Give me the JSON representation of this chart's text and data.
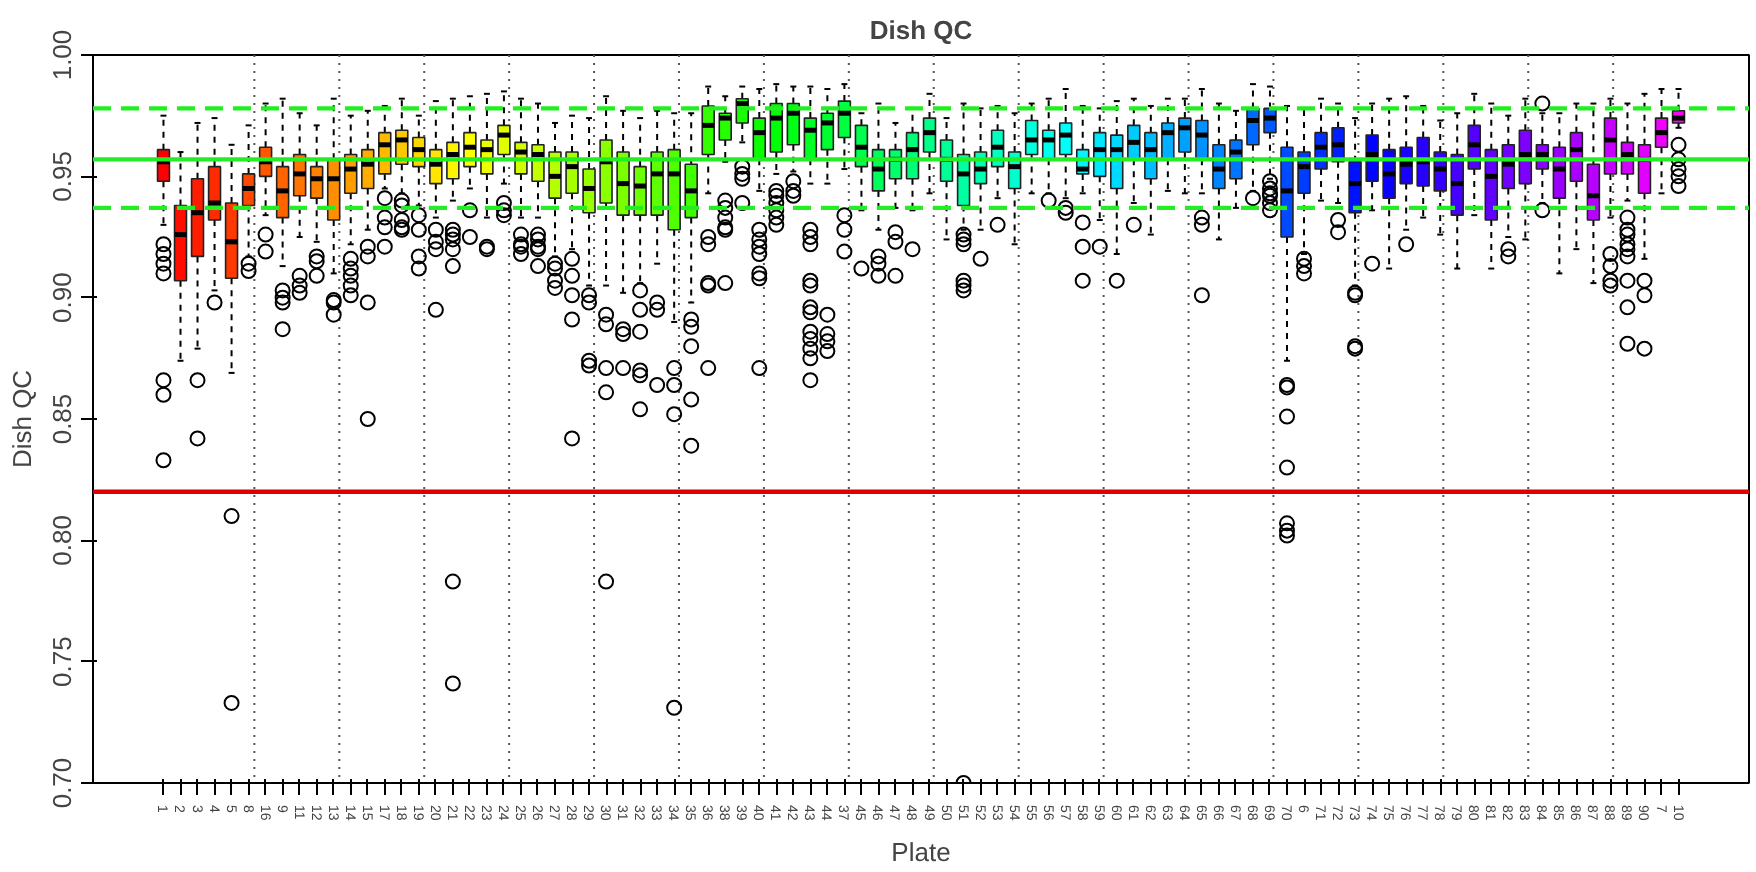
{
  "chart_data": {
    "type": "box",
    "title": "Dish QC",
    "xlabel": "Plate",
    "ylabel": "Dish QC",
    "categories": [
      "1",
      "2",
      "3",
      "4",
      "5",
      "8",
      "16",
      "9",
      "11",
      "12",
      "13",
      "14",
      "15",
      "17",
      "18",
      "19",
      "20",
      "21",
      "22",
      "23",
      "24",
      "25",
      "26",
      "27",
      "28",
      "29",
      "30",
      "31",
      "32",
      "33",
      "34",
      "35",
      "36",
      "38",
      "39",
      "40",
      "41",
      "42",
      "43",
      "44",
      "37",
      "45",
      "46",
      "47",
      "48",
      "49",
      "50",
      "51",
      "52",
      "53",
      "54",
      "55",
      "56",
      "57",
      "58",
      "59",
      "60",
      "61",
      "62",
      "63",
      "64",
      "65",
      "66",
      "67",
      "68",
      "69",
      "70",
      "6",
      "71",
      "72",
      "73",
      "74",
      "75",
      "76",
      "77",
      "78",
      "79",
      "80",
      "81",
      "82",
      "83",
      "84",
      "85",
      "86",
      "87",
      "88",
      "89",
      "90",
      "7",
      "10"
    ],
    "colors": [
      "#ff0000",
      "#ff0e00",
      "#ff1d00",
      "#ff2b00",
      "#ff3900",
      "#ff4800",
      "#ff5600",
      "#ff6400",
      "#ff7300",
      "#ff8100",
      "#ff8f00",
      "#ff9e00",
      "#ffac00",
      "#ffba00",
      "#ffc900",
      "#ffd700",
      "#ffe500",
      "#fff400",
      "#fcff00",
      "#eeff00",
      "#e0ff00",
      "#d1ff00",
      "#c3ff00",
      "#b4ff00",
      "#a6ff00",
      "#98ff00",
      "#89ff00",
      "#7bff00",
      "#6dff00",
      "#5eff00",
      "#50ff00",
      "#42ff00",
      "#34ff00",
      "#25ff00",
      "#17ff00",
      "#09ff00",
      "#00ff06",
      "#00ff14",
      "#00ff22",
      "#00ff31",
      "#00ff3f",
      "#00ff4d",
      "#00ff5c",
      "#00ff6a",
      "#00ff78",
      "#00ff87",
      "#00ff95",
      "#00ffa3",
      "#00ffb2",
      "#00ffc0",
      "#00ffce",
      "#00ffdd",
      "#00ffeb",
      "#00fff9",
      "#00f6ff",
      "#00e8ff",
      "#00daff",
      "#00cbff",
      "#00bdff",
      "#00afff",
      "#00a0ff",
      "#0092ff",
      "#0084ff",
      "#0075ff",
      "#0067ff",
      "#0059ff",
      "#004aff",
      "#003cff",
      "#002eff",
      "#001fff",
      "#0011ff",
      "#0003ff",
      "#0b00ff",
      "#1a00ff",
      "#2800ff",
      "#3600ff",
      "#4500ff",
      "#5300ff",
      "#6100ff",
      "#7000ff",
      "#7e00ff",
      "#8c00ff",
      "#9b00ff",
      "#a900ff",
      "#b700ff",
      "#c600ff",
      "#d400ff",
      "#e200ff",
      "#f100ff",
      "#ff00ff"
    ],
    "boxes": [
      {
        "low": 0.93,
        "q1": 0.948,
        "median": 0.956,
        "q3": 0.961,
        "high": 0.975,
        "outliers": [
          0.922,
          0.918,
          0.914,
          0.91,
          0.866,
          0.86,
          0.833
        ]
      },
      {
        "low": 0.874,
        "q1": 0.907,
        "median": 0.926,
        "q3": 0.938,
        "high": 0.96
      },
      {
        "low": 0.879,
        "q1": 0.917,
        "median": 0.935,
        "q3": 0.949,
        "high": 0.972,
        "outliers": [
          0.866,
          0.842
        ]
      },
      {
        "low": 0.903,
        "q1": 0.932,
        "median": 0.939,
        "q3": 0.954,
        "high": 0.974,
        "outliers": [
          0.898
        ]
      },
      {
        "low": 0.869,
        "q1": 0.908,
        "median": 0.923,
        "q3": 0.939,
        "high": 0.963,
        "outliers": [
          0.81,
          0.733
        ]
      },
      {
        "low": 0.917,
        "q1": 0.938,
        "median": 0.945,
        "q3": 0.951,
        "high": 0.971,
        "outliers": [
          0.914,
          0.911
        ]
      },
      {
        "low": 0.934,
        "q1": 0.95,
        "median": 0.956,
        "q3": 0.962,
        "high": 0.98,
        "outliers": [
          0.926,
          0.919
        ]
      },
      {
        "low": 0.913,
        "q1": 0.933,
        "median": 0.944,
        "q3": 0.954,
        "high": 0.982,
        "outliers": [
          0.903,
          0.9,
          0.898,
          0.887
        ]
      },
      {
        "low": 0.925,
        "q1": 0.942,
        "median": 0.951,
        "q3": 0.959,
        "high": 0.976,
        "outliers": [
          0.909,
          0.905,
          0.902
        ]
      },
      {
        "low": 0.923,
        "q1": 0.941,
        "median": 0.949,
        "q3": 0.954,
        "high": 0.971,
        "outliers": [
          0.917,
          0.915,
          0.909
        ]
      },
      {
        "low": 0.91,
        "q1": 0.932,
        "median": 0.949,
        "q3": 0.957,
        "high": 0.982,
        "outliers": [
          0.899,
          0.898,
          0.893
        ]
      },
      {
        "low": 0.922,
        "q1": 0.943,
        "median": 0.953,
        "q3": 0.959,
        "high": 0.975,
        "outliers": [
          0.916,
          0.912,
          0.909,
          0.905,
          0.901
        ]
      },
      {
        "low": 0.928,
        "q1": 0.945,
        "median": 0.955,
        "q3": 0.961,
        "high": 0.977,
        "outliers": [
          0.921,
          0.917,
          0.898,
          0.85
        ]
      },
      {
        "low": 0.945,
        "q1": 0.951,
        "median": 0.963,
        "q3": 0.968,
        "high": 0.979,
        "outliers": [
          0.941,
          0.933,
          0.929,
          0.921
        ]
      },
      {
        "low": 0.943,
        "q1": 0.955,
        "median": 0.965,
        "q3": 0.969,
        "high": 0.982,
        "outliers": [
          0.94,
          0.938,
          0.932,
          0.929,
          0.928
        ]
      },
      {
        "low": 0.938,
        "q1": 0.954,
        "median": 0.961,
        "q3": 0.966,
        "high": 0.975,
        "outliers": [
          0.934,
          0.928,
          0.917,
          0.912
        ]
      },
      {
        "low": 0.933,
        "q1": 0.947,
        "median": 0.955,
        "q3": 0.961,
        "high": 0.981,
        "outliers": [
          0.928,
          0.923,
          0.92,
          0.895
        ]
      },
      {
        "low": 0.94,
        "q1": 0.949,
        "median": 0.959,
        "q3": 0.964,
        "high": 0.982,
        "outliers": [
          0.928,
          0.926,
          0.924,
          0.92,
          0.913,
          0.783,
          0.741
        ]
      },
      {
        "low": 0.945,
        "q1": 0.954,
        "median": 0.962,
        "q3": 0.968,
        "high": 0.983,
        "outliers": [
          0.936,
          0.925
        ]
      },
      {
        "low": 0.933,
        "q1": 0.951,
        "median": 0.961,
        "q3": 0.965,
        "high": 0.984,
        "outliers": [
          0.921,
          0.92
        ]
      },
      {
        "low": 0.947,
        "q1": 0.959,
        "median": 0.967,
        "q3": 0.971,
        "high": 0.985,
        "outliers": [
          0.939,
          0.936,
          0.934
        ]
      },
      {
        "low": 0.933,
        "q1": 0.951,
        "median": 0.96,
        "q3": 0.964,
        "high": 0.982,
        "outliers": [
          0.926,
          0.922,
          0.921,
          0.918
        ]
      },
      {
        "low": 0.933,
        "q1": 0.948,
        "median": 0.959,
        "q3": 0.963,
        "high": 0.98,
        "outliers": [
          0.926,
          0.924,
          0.921,
          0.92,
          0.913
        ]
      },
      {
        "low": 0.917,
        "q1": 0.941,
        "median": 0.95,
        "q3": 0.96,
        "high": 0.972,
        "outliers": [
          0.914,
          0.912,
          0.907,
          0.904
        ]
      },
      {
        "low": 0.92,
        "q1": 0.943,
        "median": 0.954,
        "q3": 0.96,
        "high": 0.975,
        "outliers": [
          0.916,
          0.909,
          0.901,
          0.891,
          0.842
        ]
      },
      {
        "low": 0.905,
        "q1": 0.935,
        "median": 0.945,
        "q3": 0.953,
        "high": 0.974,
        "outliers": [
          0.901,
          0.898,
          0.874,
          0.872
        ]
      },
      {
        "low": 0.905,
        "q1": 0.939,
        "median": 0.956,
        "q3": 0.965,
        "high": 0.983,
        "outliers": [
          0.893,
          0.889,
          0.871,
          0.861,
          0.783
        ]
      },
      {
        "low": 0.902,
        "q1": 0.934,
        "median": 0.947,
        "q3": 0.96,
        "high": 0.977,
        "outliers": [
          0.887,
          0.885,
          0.871
        ]
      },
      {
        "low": 0.906,
        "q1": 0.934,
        "median": 0.946,
        "q3": 0.954,
        "high": 0.974,
        "outliers": [
          0.903,
          0.895,
          0.886,
          0.87,
          0.868,
          0.854
        ]
      },
      {
        "low": 0.914,
        "q1": 0.934,
        "median": 0.951,
        "q3": 0.96,
        "high": 0.977,
        "outliers": [
          0.898,
          0.895,
          0.864
        ]
      },
      {
        "low": 0.89,
        "q1": 0.928,
        "median": 0.951,
        "q3": 0.961,
        "high": 0.976,
        "outliers": [
          0.871,
          0.864,
          0.852,
          0.731
        ]
      },
      {
        "low": 0.898,
        "q1": 0.933,
        "median": 0.944,
        "q3": 0.955,
        "high": 0.976,
        "outliers": [
          0.891,
          0.888,
          0.88,
          0.858,
          0.839
        ]
      },
      {
        "low": 0.943,
        "q1": 0.959,
        "median": 0.971,
        "q3": 0.979,
        "high": 0.987,
        "outliers": [
          0.925,
          0.922,
          0.906,
          0.905,
          0.871
        ]
      },
      {
        "low": 0.956,
        "q1": 0.965,
        "median": 0.974,
        "q3": 0.976,
        "high": 0.983,
        "outliers": [
          0.94,
          0.937,
          0.933,
          0.929,
          0.928,
          0.906
        ]
      },
      {
        "low": 0.964,
        "q1": 0.972,
        "median": 0.98,
        "q3": 0.982,
        "high": 0.987,
        "outliers": [
          0.954,
          0.951,
          0.949,
          0.939
        ]
      },
      {
        "low": 0.944,
        "q1": 0.957,
        "median": 0.968,
        "q3": 0.974,
        "high": 0.986,
        "outliers": [
          0.928,
          0.924,
          0.921,
          0.918,
          0.91,
          0.908,
          0.871
        ]
      },
      {
        "low": 0.951,
        "q1": 0.96,
        "median": 0.974,
        "q3": 0.98,
        "high": 0.988,
        "outliers": [
          0.944,
          0.942,
          0.939,
          0.936,
          0.933,
          0.93
        ]
      },
      {
        "low": 0.952,
        "q1": 0.963,
        "median": 0.976,
        "q3": 0.98,
        "high": 0.987,
        "outliers": [
          0.948,
          0.944,
          0.942
        ]
      },
      {
        "low": 0.947,
        "q1": 0.957,
        "median": 0.969,
        "q3": 0.974,
        "high": 0.987,
        "outliers": [
          0.928,
          0.925,
          0.922,
          0.907,
          0.905,
          0.896,
          0.894,
          0.886,
          0.883,
          0.879,
          0.875,
          0.866
        ]
      },
      {
        "low": 0.947,
        "q1": 0.961,
        "median": 0.972,
        "q3": 0.976,
        "high": 0.986,
        "outliers": [
          0.893,
          0.885,
          0.882,
          0.878
        ]
      },
      {
        "low": 0.953,
        "q1": 0.966,
        "median": 0.976,
        "q3": 0.981,
        "high": 0.988,
        "outliers": [
          0.934,
          0.928,
          0.919
        ]
      },
      {
        "low": 0.936,
        "q1": 0.954,
        "median": 0.962,
        "q3": 0.971,
        "high": 0.976,
        "outliers": [
          0.912
        ]
      },
      {
        "low": 0.928,
        "q1": 0.944,
        "median": 0.953,
        "q3": 0.961,
        "high": 0.98,
        "outliers": [
          0.917,
          0.914,
          0.909
        ]
      },
      {
        "low": 0.937,
        "q1": 0.949,
        "median": 0.957,
        "q3": 0.961,
        "high": 0.972,
        "outliers": [
          0.927,
          0.923,
          0.909
        ]
      },
      {
        "low": 0.936,
        "q1": 0.949,
        "median": 0.961,
        "q3": 0.968,
        "high": 0.978,
        "outliers": [
          0.92
        ]
      },
      {
        "low": 0.943,
        "q1": 0.96,
        "median": 0.968,
        "q3": 0.974,
        "high": 0.984
      },
      {
        "low": 0.924,
        "q1": 0.948,
        "median": 0.957,
        "q3": 0.965,
        "high": 0.974
      },
      {
        "low": 0.928,
        "q1": 0.938,
        "median": 0.951,
        "q3": 0.959,
        "high": 0.98,
        "outliers": [
          0.926,
          0.924,
          0.922,
          0.907,
          0.905,
          0.903,
          0.7
        ]
      },
      {
        "low": 0.928,
        "q1": 0.947,
        "median": 0.953,
        "q3": 0.96,
        "high": 0.978,
        "outliers": [
          0.916
        ]
      },
      {
        "low": 0.941,
        "q1": 0.954,
        "median": 0.962,
        "q3": 0.969,
        "high": 0.979,
        "outliers": [
          0.93
        ]
      },
      {
        "low": 0.922,
        "q1": 0.945,
        "median": 0.954,
        "q3": 0.96,
        "high": 0.976
      },
      {
        "low": 0.943,
        "q1": 0.959,
        "median": 0.965,
        "q3": 0.973,
        "high": 0.98
      },
      {
        "low": 0.943,
        "q1": 0.957,
        "median": 0.965,
        "q3": 0.969,
        "high": 0.982,
        "outliers": [
          0.94
        ]
      },
      {
        "low": 0.941,
        "q1": 0.959,
        "median": 0.967,
        "q3": 0.972,
        "high": 0.986,
        "outliers": [
          0.937,
          0.935
        ]
      },
      {
        "low": 0.943,
        "q1": 0.951,
        "median": 0.953,
        "q3": 0.961,
        "high": 0.979,
        "outliers": [
          0.931,
          0.921,
          0.907
        ]
      },
      {
        "low": 0.932,
        "q1": 0.95,
        "median": 0.961,
        "q3": 0.968,
        "high": 0.978,
        "outliers": [
          0.921
        ]
      },
      {
        "low": 0.918,
        "q1": 0.945,
        "median": 0.961,
        "q3": 0.967,
        "high": 0.981,
        "outliers": [
          0.907
        ]
      },
      {
        "low": 0.939,
        "q1": 0.957,
        "median": 0.964,
        "q3": 0.971,
        "high": 0.982,
        "outliers": [
          0.93
        ]
      },
      {
        "low": 0.926,
        "q1": 0.949,
        "median": 0.961,
        "q3": 0.968,
        "high": 0.979
      },
      {
        "low": 0.944,
        "q1": 0.957,
        "median": 0.968,
        "q3": 0.972,
        "high": 0.982
      },
      {
        "low": 0.943,
        "q1": 0.96,
        "median": 0.97,
        "q3": 0.974,
        "high": 0.982
      },
      {
        "low": 0.943,
        "q1": 0.957,
        "median": 0.967,
        "q3": 0.973,
        "high": 0.986,
        "outliers": [
          0.933,
          0.93,
          0.901
        ]
      },
      {
        "low": 0.924,
        "q1": 0.945,
        "median": 0.953,
        "q3": 0.963,
        "high": 0.98
      },
      {
        "low": 0.937,
        "q1": 0.949,
        "median": 0.96,
        "q3": 0.965,
        "high": 0.977
      },
      {
        "low": 0.944,
        "q1": 0.963,
        "median": 0.973,
        "q3": 0.978,
        "high": 0.988,
        "outliers": [
          0.941
        ]
      },
      {
        "low": 0.949,
        "q1": 0.968,
        "median": 0.974,
        "q3": 0.978,
        "high": 0.987,
        "outliers": [
          0.948,
          0.945,
          0.943,
          0.942,
          0.939,
          0.936
        ]
      },
      {
        "low": 0.874,
        "q1": 0.925,
        "median": 0.944,
        "q3": 0.962,
        "high": 0.979,
        "outliers": [
          0.864,
          0.863,
          0.851,
          0.83,
          0.807,
          0.804,
          0.802
        ]
      },
      {
        "low": 0.918,
        "q1": 0.943,
        "median": 0.954,
        "q3": 0.96,
        "high": 0.978,
        "outliers": [
          0.916,
          0.913,
          0.91
        ]
      },
      {
        "low": 0.94,
        "q1": 0.953,
        "median": 0.962,
        "q3": 0.968,
        "high": 0.982
      },
      {
        "low": 0.939,
        "q1": 0.956,
        "median": 0.963,
        "q3": 0.97,
        "high": 0.98,
        "outliers": [
          0.932,
          0.927
        ]
      },
      {
        "low": 0.905,
        "q1": 0.935,
        "median": 0.947,
        "q3": 0.956,
        "high": 0.974,
        "outliers": [
          0.902,
          0.901,
          0.88,
          0.879
        ]
      },
      {
        "low": 0.936,
        "q1": 0.948,
        "median": 0.959,
        "q3": 0.967,
        "high": 0.98,
        "outliers": [
          0.914
        ]
      },
      {
        "low": 0.912,
        "q1": 0.941,
        "median": 0.951,
        "q3": 0.961,
        "high": 0.982
      },
      {
        "low": 0.928,
        "q1": 0.947,
        "median": 0.955,
        "q3": 0.962,
        "high": 0.983,
        "outliers": [
          0.922
        ]
      },
      {
        "low": 0.933,
        "q1": 0.946,
        "median": 0.956,
        "q3": 0.966,
        "high": 0.979
      },
      {
        "low": 0.926,
        "q1": 0.944,
        "median": 0.953,
        "q3": 0.96,
        "high": 0.973
      },
      {
        "low": 0.912,
        "q1": 0.934,
        "median": 0.947,
        "q3": 0.959,
        "high": 0.976
      },
      {
        "low": 0.934,
        "q1": 0.953,
        "median": 0.963,
        "q3": 0.971,
        "high": 0.984
      },
      {
        "low": 0.912,
        "q1": 0.932,
        "median": 0.95,
        "q3": 0.961,
        "high": 0.98
      },
      {
        "low": 0.925,
        "q1": 0.945,
        "median": 0.955,
        "q3": 0.963,
        "high": 0.975,
        "outliers": [
          0.92,
          0.917
        ]
      },
      {
        "low": 0.924,
        "q1": 0.947,
        "median": 0.959,
        "q3": 0.969,
        "high": 0.982
      },
      {
        "low": 0.939,
        "q1": 0.953,
        "median": 0.959,
        "q3": 0.963,
        "high": 0.976,
        "outliers": [
          0.98,
          0.936
        ]
      },
      {
        "low": 0.91,
        "q1": 0.941,
        "median": 0.953,
        "q3": 0.962,
        "high": 0.976
      },
      {
        "low": 0.92,
        "q1": 0.948,
        "median": 0.961,
        "q3": 0.968,
        "high": 0.98
      },
      {
        "low": 0.906,
        "q1": 0.932,
        "median": 0.942,
        "q3": 0.955,
        "high": 0.98
      },
      {
        "low": 0.933,
        "q1": 0.951,
        "median": 0.965,
        "q3": 0.974,
        "high": 0.982,
        "outliers": [
          0.918,
          0.913,
          0.907,
          0.905
        ]
      },
      {
        "low": 0.94,
        "q1": 0.951,
        "median": 0.959,
        "q3": 0.964,
        "high": 0.98,
        "outliers": [
          0.933,
          0.928,
          0.926,
          0.922,
          0.92,
          0.917,
          0.907,
          0.896,
          0.881
        ]
      },
      {
        "low": 0.916,
        "q1": 0.943,
        "median": 0.957,
        "q3": 0.963,
        "high": 0.984,
        "outliers": [
          0.907,
          0.901,
          0.879
        ]
      },
      {
        "low": 0.943,
        "q1": 0.962,
        "median": 0.968,
        "q3": 0.974,
        "high": 0.986
      },
      {
        "low": 0.97,
        "q1": 0.972,
        "median": 0.974,
        "q3": 0.977,
        "high": 0.986,
        "outliers": [
          0.963,
          0.957,
          0.953,
          0.95,
          0.946
        ]
      }
    ],
    "ylim": [
      0.7,
      1.0
    ],
    "yticks": [
      {
        "value": 0.7,
        "label": "0.70"
      },
      {
        "value": 0.75,
        "label": "0.75"
      },
      {
        "value": 0.8,
        "label": "0.80"
      },
      {
        "value": 0.85,
        "label": "0.85"
      },
      {
        "value": 0.9,
        "label": "0.90"
      },
      {
        "value": 0.95,
        "label": "0.95"
      },
      {
        "value": 1.0,
        "label": "1.00"
      }
    ],
    "ref_lines": [
      {
        "axis": "y",
        "value": 0.957,
        "color": "#22ee22",
        "line_style": "solid"
      },
      {
        "axis": "y",
        "value": 0.978,
        "color": "#22ee22",
        "line_style": "dashed"
      },
      {
        "axis": "y",
        "value": 0.937,
        "color": "#22ee22",
        "line_style": "dashed"
      },
      {
        "axis": "y",
        "value": 0.82,
        "color": "#dd0000",
        "line_style": "solid"
      }
    ]
  }
}
